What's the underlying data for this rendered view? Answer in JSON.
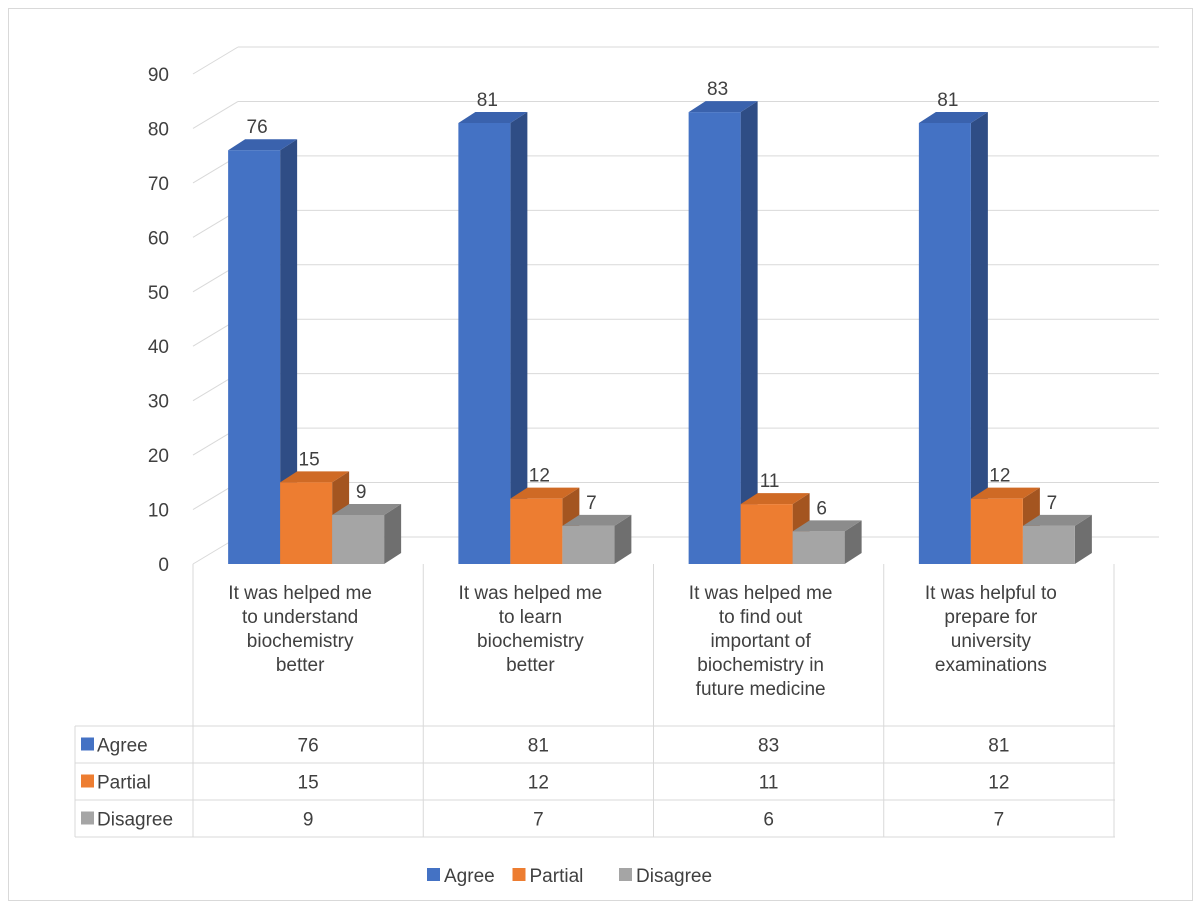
{
  "chart_data": {
    "type": "bar",
    "title": "",
    "xlabel": "",
    "ylabel": "",
    "ylim": [
      0,
      90
    ],
    "yticks": [
      0,
      10,
      20,
      30,
      40,
      50,
      60,
      70,
      80,
      90
    ],
    "grid": true,
    "legend_position": "bottom",
    "data_table": true,
    "categories": [
      "It was helped me to understand biochemistry better",
      "It was helped me to learn biochemistry better",
      "It was helped me to find out important of biochemistry in future medicine",
      "It was helpful to prepare for university examinations"
    ],
    "category_lines": [
      [
        "It was helped me",
        "to understand",
        "biochemistry",
        "better"
      ],
      [
        "It was helped me",
        "to learn",
        "biochemistry",
        "better"
      ],
      [
        "It was helped me",
        "to find out",
        "important of",
        "biochemistry in",
        "future medicine"
      ],
      [
        "It was helpful to",
        "prepare for",
        "university",
        "examinations"
      ]
    ],
    "series": [
      {
        "name": "Agree",
        "values": [
          76,
          81,
          83,
          81
        ],
        "color": "#4472c4",
        "side_color": "#2f4d85",
        "top_color": "#3a62ad"
      },
      {
        "name": "Partial",
        "values": [
          15,
          12,
          11,
          12
        ],
        "color": "#ed7d31",
        "side_color": "#a45520",
        "top_color": "#cf6a25"
      },
      {
        "name": "Disagree",
        "values": [
          9,
          7,
          6,
          7
        ],
        "color": "#a5a5a5",
        "side_color": "#6f6f6f",
        "top_color": "#8c8c8c"
      }
    ]
  }
}
